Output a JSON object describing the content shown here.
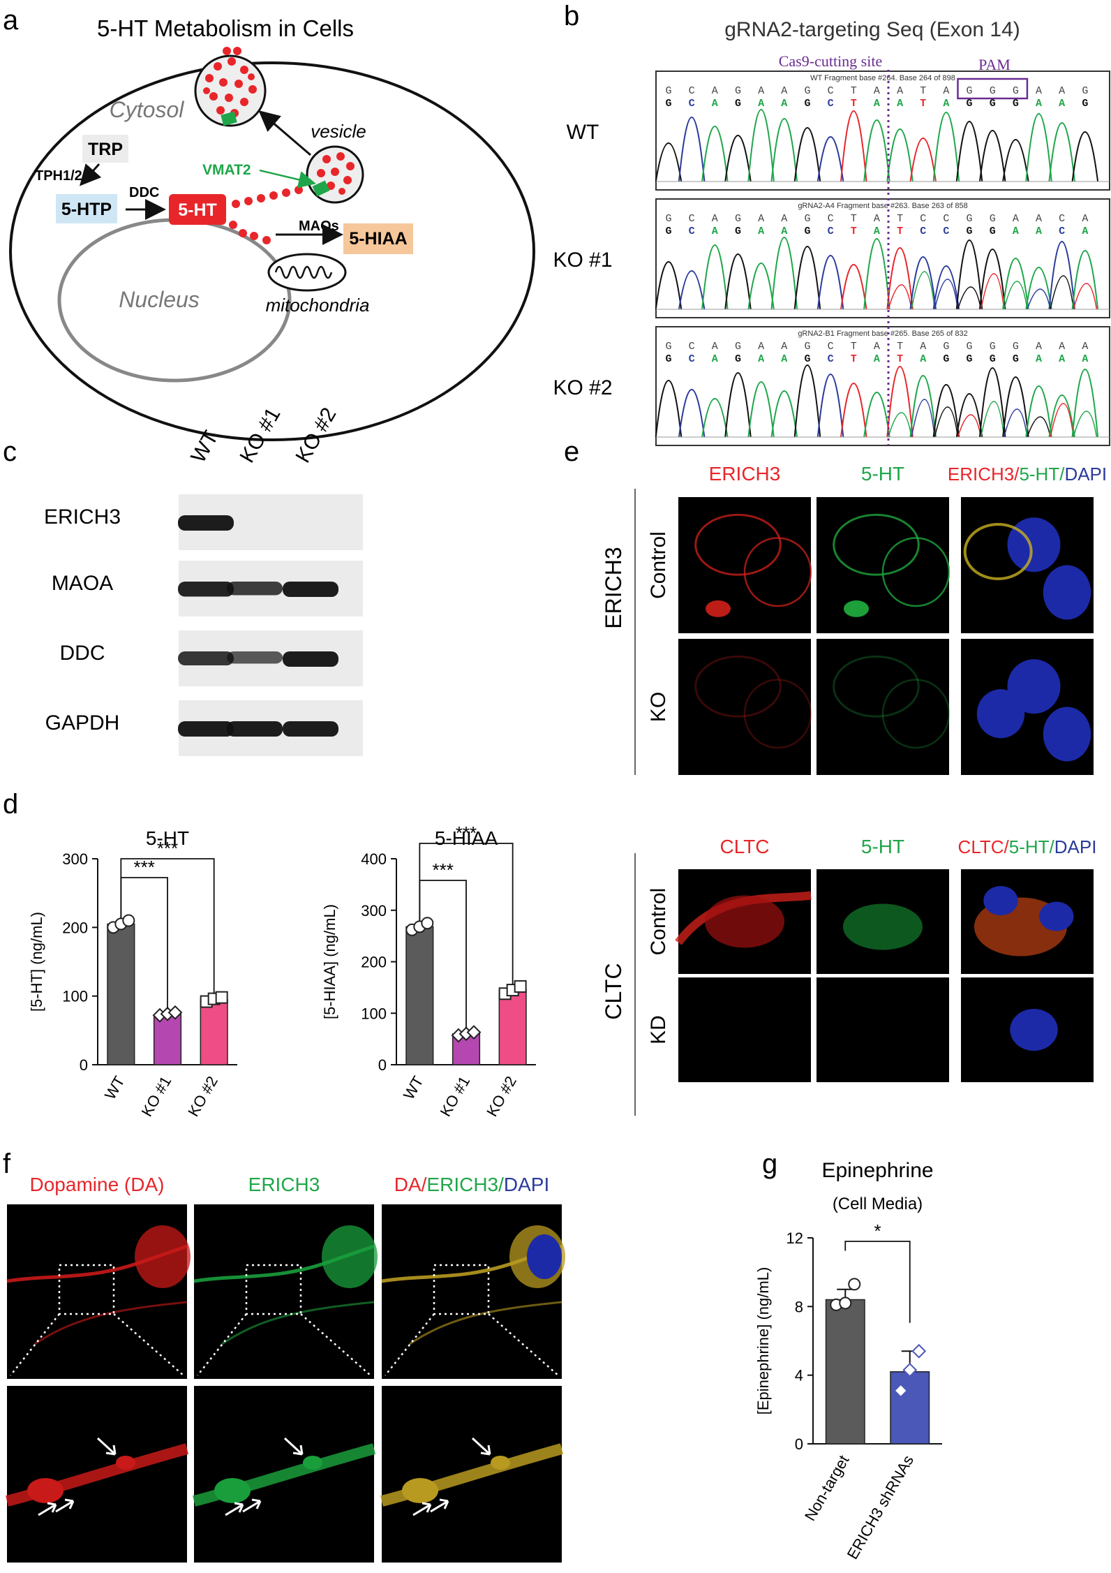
{
  "colors": {
    "red": "#e8262a",
    "green": "#1fa64a",
    "blue": "#2b3b9c",
    "purple": "#6a2c91",
    "gray_bar": "#5b5b5b",
    "magenta_bar": "#b548b0",
    "pink_bar": "#ee4d86",
    "blue_bar": "#4b58b8",
    "htp_box": "#cfe6f5",
    "hiaa_box": "#f6c79a",
    "ht_box": "#e8262a",
    "trp_box": "#ececec"
  },
  "panel_letters": {
    "a": "a",
    "b": "b",
    "c": "c",
    "d": "d",
    "e": "e",
    "f": "f",
    "g": "g"
  },
  "panel_a": {
    "title": "5-HT Metabolism in Cells",
    "cytosol": "Cytosol",
    "nucleus": "Nucleus",
    "vesicle": "vesicle",
    "mitochondria": "mitochondria",
    "trp": "TRP",
    "tph": "TPH1/2",
    "htp": "5-HTP",
    "ddc": "DDC",
    "ht": "5-HT",
    "vmat2": "VMAT2",
    "maos": "MAOs",
    "hiaa": "5-HIAA"
  },
  "panel_b": {
    "title": "gRNA2-targeting Seq (Exon 14)",
    "cut_label": "Cas9-cutting site",
    "pam_label": "PAM",
    "rows": [
      {
        "label": "WT",
        "header": "WT Fragment base #264. Base 264 of 898",
        "seq": "GCAGAAGCTAATAGGGAAG"
      },
      {
        "label": "KO #1",
        "header": "gRNA2-A4 Fragment base #263. Base 263 of 858",
        "seq": "GCAGAAGCTATCCGGAACA"
      },
      {
        "label": "KO #2",
        "header": "gRNA2-B1 Fragment base #265. Base 265 of 832",
        "seq": "GCAGAAGCTATAGGGGAAA"
      }
    ]
  },
  "panel_c": {
    "lanes": [
      "WT",
      "KO #1",
      "KO #2"
    ],
    "proteins": [
      {
        "name": "ERICH3",
        "levels": [
          1.0,
          0.0,
          0.0
        ]
      },
      {
        "name": "MAOA",
        "levels": [
          0.95,
          0.75,
          1.0
        ]
      },
      {
        "name": "DDC",
        "levels": [
          0.8,
          0.55,
          1.0
        ]
      },
      {
        "name": "GAPDH",
        "levels": [
          1.0,
          1.0,
          1.0
        ]
      }
    ]
  },
  "panel_e": {
    "top": {
      "group": "ERICH3",
      "cols": [
        "ERICH3",
        "5-HT",
        "ERICH3/5-HT/DAPI"
      ],
      "rows": [
        "Control",
        "KO"
      ]
    },
    "bottom": {
      "group": "CLTC",
      "cols": [
        "CLTC",
        "5-HT",
        "CLTC/5-HT/DAPI"
      ],
      "rows": [
        "Control",
        "KD"
      ]
    }
  },
  "panel_f": {
    "cols": [
      "Dopamine (DA)",
      "ERICH3",
      "DA/ERICH3/DAPI"
    ]
  },
  "chart_data": [
    {
      "type": "bar",
      "title": "5-HT",
      "ylabel": "[5-HT] (ng/mL)",
      "categories": [
        "WT",
        "KO #1",
        "KO #2"
      ],
      "values": [
        205,
        73,
        95
      ],
      "points": [
        [
          200,
          205,
          210
        ],
        [
          72,
          74,
          76
        ],
        [
          92,
          96,
          98
        ]
      ],
      "ylim": [
        0,
        300
      ],
      "yticks": [
        0,
        100,
        200,
        300
      ],
      "significance": [
        {
          "from": "WT",
          "to": "KO #1",
          "label": "***"
        },
        {
          "from": "WT",
          "to": "KO #2",
          "label": "***"
        }
      ]
    },
    {
      "type": "bar",
      "title": "5-HIAA",
      "ylabel": "[5-HIAA] (ng/mL)",
      "categories": [
        "WT",
        "KO #1",
        "KO #2"
      ],
      "values": [
        268,
        60,
        145
      ],
      "points": [
        [
          262,
          268,
          275
        ],
        [
          57,
          60,
          63
        ],
        [
          138,
          145,
          152
        ]
      ],
      "ylim": [
        0,
        400
      ],
      "yticks": [
        0,
        100,
        200,
        300,
        400
      ],
      "significance": [
        {
          "from": "WT",
          "to": "KO #1",
          "label": "***"
        },
        {
          "from": "WT",
          "to": "KO #2",
          "label": "***"
        }
      ]
    },
    {
      "type": "bar",
      "title": "Epinephrine",
      "subtitle": "(Cell Media)",
      "ylabel": "[Epinephrine] (ng/mL)",
      "categories": [
        "Non-target",
        "ERICH3 shRNAs"
      ],
      "values": [
        8.4,
        4.2
      ],
      "points": [
        [
          8.1,
          8.2,
          9.3
        ],
        [
          3.1,
          4.3,
          5.4
        ]
      ],
      "errors": [
        0.6,
        1.2
      ],
      "ylim": [
        0,
        12
      ],
      "yticks": [
        0,
        4,
        8,
        12
      ],
      "significance": [
        {
          "from": "Non-target",
          "to": "ERICH3 shRNAs",
          "label": "*"
        }
      ]
    }
  ]
}
